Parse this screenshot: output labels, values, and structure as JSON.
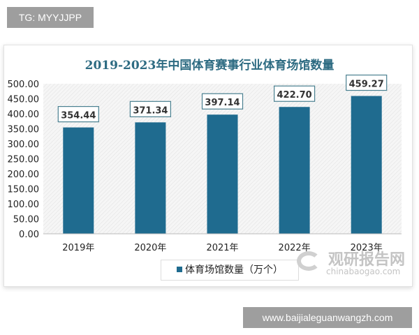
{
  "tag_label": "TG: MYYJJPP",
  "footer_label": "www.baijialeguanwangzh.com",
  "watermark": {
    "name": "观研报告网",
    "url": "chinabaogao.com"
  },
  "chart_data": {
    "type": "bar",
    "title": "2019-2023年中国体育赛事行业体育场馆数量",
    "categories": [
      "2019年",
      "2020年",
      "2021年",
      "2022年",
      "2023年"
    ],
    "series": [
      {
        "name": "体育场馆数量（万个）",
        "values": [
          354.44,
          371.34,
          397.14,
          422.7,
          459.27
        ]
      }
    ],
    "data_labels": [
      "354.44",
      "371.34",
      "397.14",
      "422.70",
      "459.27"
    ],
    "ylim": [
      0,
      500
    ],
    "yticks": [
      "0.00",
      "50.00",
      "100.00",
      "150.00",
      "200.00",
      "250.00",
      "300.00",
      "350.00",
      "400.00",
      "450.00",
      "500.00"
    ],
    "legend": "bottom",
    "grid": false,
    "colors": {
      "bar": "#1f6b8f",
      "title": "#2d6b82"
    }
  }
}
